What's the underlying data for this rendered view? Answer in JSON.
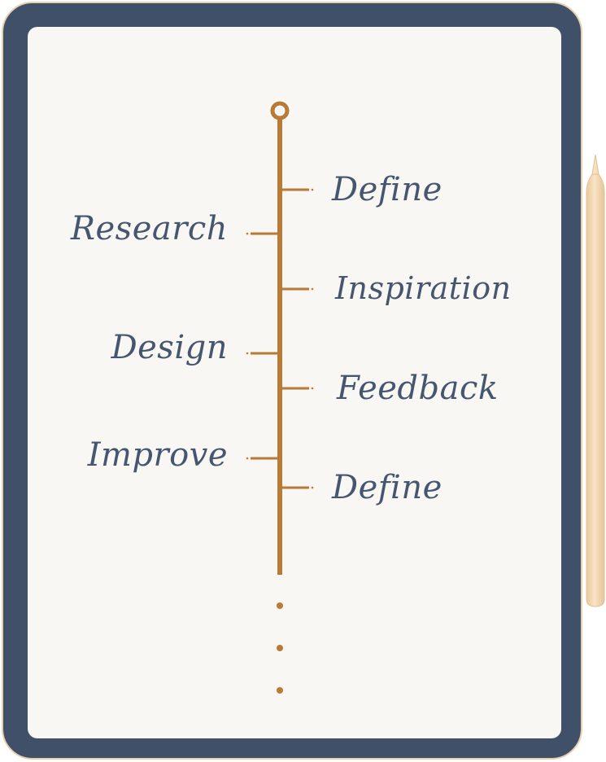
{
  "colors": {
    "frame": "#3f5068",
    "frame_edge": "#e8cfae",
    "screen": "#f8f7f4",
    "timeline": "#b87a34",
    "text": "#46566f",
    "pencil": "#f5ddb8"
  },
  "timeline": {
    "right_labels": [
      "Define",
      "Inspiration",
      "Feedback",
      "Define"
    ],
    "left_labels": [
      "Research",
      "Design",
      "Improve"
    ]
  },
  "icons": {
    "start": "circle-node-icon",
    "continuation": "ellipsis-dots-icon",
    "stylus": "pencil-icon"
  }
}
